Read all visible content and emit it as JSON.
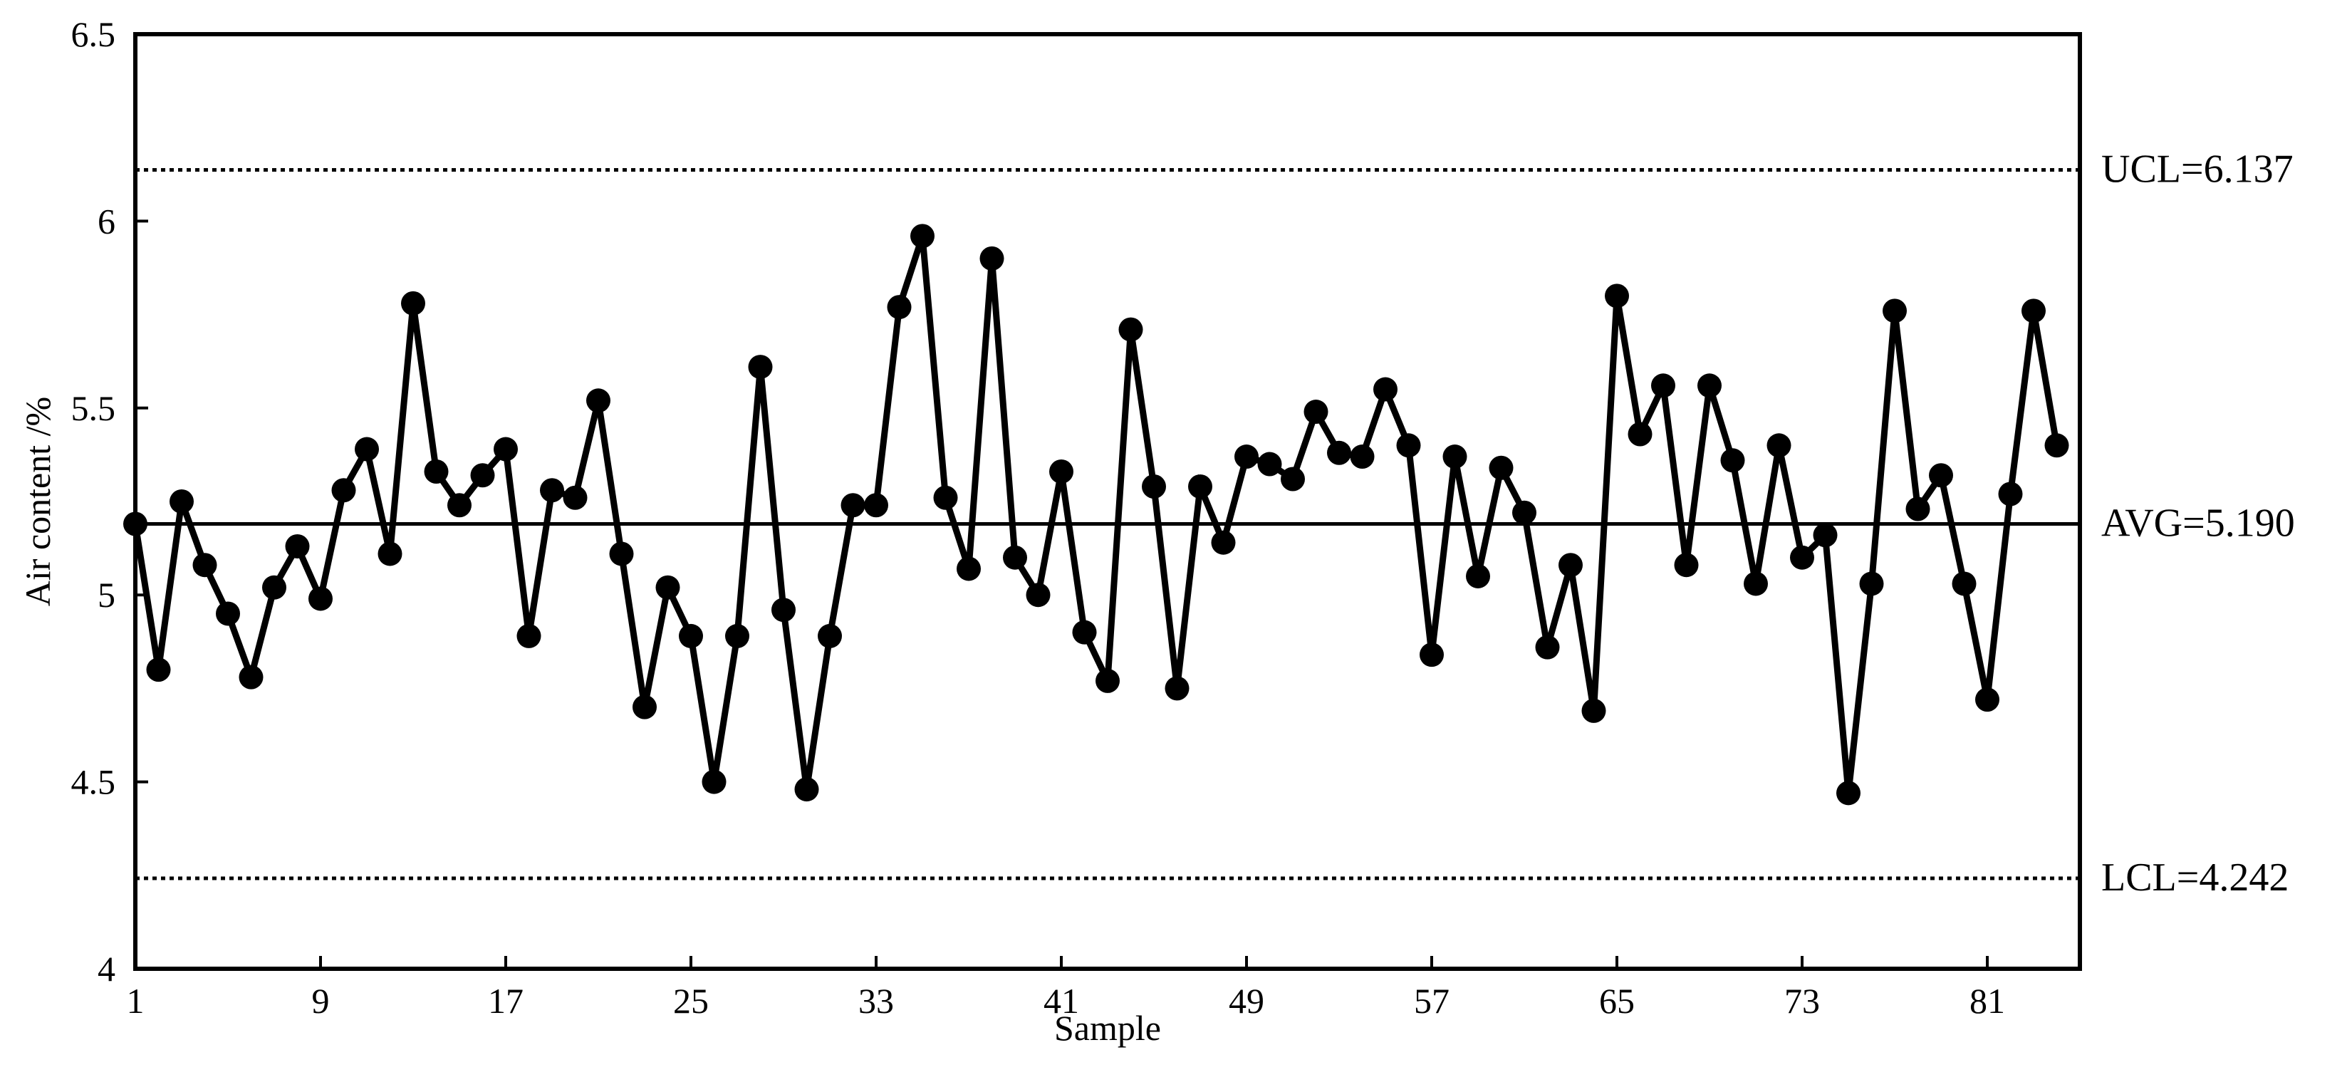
{
  "chart_data": {
    "type": "line",
    "title": "",
    "xlabel": "Sample",
    "ylabel": "Air content /%",
    "xlim": [
      1,
      85
    ],
    "ylim": [
      4,
      6.5
    ],
    "grid": false,
    "x_ticks": [
      1,
      9,
      17,
      25,
      33,
      41,
      49,
      57,
      65,
      73,
      81
    ],
    "x_tick_labels": [
      "1",
      "9",
      "17",
      "25",
      "33",
      "41",
      "49",
      "57",
      "65",
      "73",
      "81"
    ],
    "y_ticks": [
      4,
      4.5,
      5,
      5.5,
      6,
      6.5
    ],
    "y_tick_labels": [
      "4",
      "4.5",
      "5",
      "5.5",
      "6",
      "6.5"
    ],
    "control_lines": [
      {
        "label": "UCL=6.137",
        "value": 6.137,
        "style": "dotted"
      },
      {
        "label": "AVG=5.190",
        "value": 5.19,
        "style": "solid"
      },
      {
        "label": "LCL=4.242",
        "value": 4.242,
        "style": "dotted"
      }
    ],
    "series": [
      {
        "x": [
          1,
          2,
          3,
          4,
          5,
          6,
          7,
          8,
          9,
          10,
          11,
          12,
          13,
          14,
          15,
          16,
          17,
          18,
          19,
          20,
          21,
          22,
          23,
          24,
          25,
          26,
          27,
          28,
          29,
          30,
          31,
          32,
          33,
          34,
          35,
          36,
          37,
          38,
          39,
          40,
          41,
          42,
          43,
          44,
          45,
          46,
          47,
          48,
          49,
          50,
          51,
          52,
          53,
          54,
          55,
          56,
          57,
          58,
          59,
          60,
          61,
          62,
          63,
          64,
          65,
          66,
          67,
          68,
          69,
          70,
          71,
          72,
          73,
          74,
          75,
          76,
          77,
          78,
          79,
          80,
          81,
          82,
          83,
          84
        ],
        "values": [
          5.19,
          4.8,
          5.25,
          5.08,
          4.95,
          4.78,
          5.02,
          5.13,
          4.99,
          5.28,
          5.39,
          5.11,
          5.78,
          5.33,
          5.24,
          5.32,
          5.39,
          4.89,
          5.28,
          5.26,
          5.52,
          5.11,
          4.7,
          5.02,
          4.89,
          4.5,
          4.89,
          5.61,
          4.96,
          4.48,
          4.89,
          5.24,
          5.24,
          5.77,
          5.96,
          5.26,
          5.07,
          5.9,
          5.1,
          5.0,
          5.33,
          4.9,
          4.77,
          5.71,
          5.29,
          4.75,
          5.29,
          5.14,
          5.37,
          5.35,
          5.31,
          5.49,
          5.38,
          5.37,
          5.55,
          5.4,
          4.84,
          5.37,
          5.05,
          5.34,
          5.22,
          4.86,
          5.08,
          4.69,
          5.8,
          5.43,
          5.56,
          5.08,
          5.56,
          5.36,
          5.03,
          5.4,
          5.1,
          5.16,
          4.47,
          5.03,
          5.76,
          5.23,
          5.32,
          5.03,
          4.72,
          5.27,
          5.76,
          5.4
        ]
      }
    ]
  }
}
